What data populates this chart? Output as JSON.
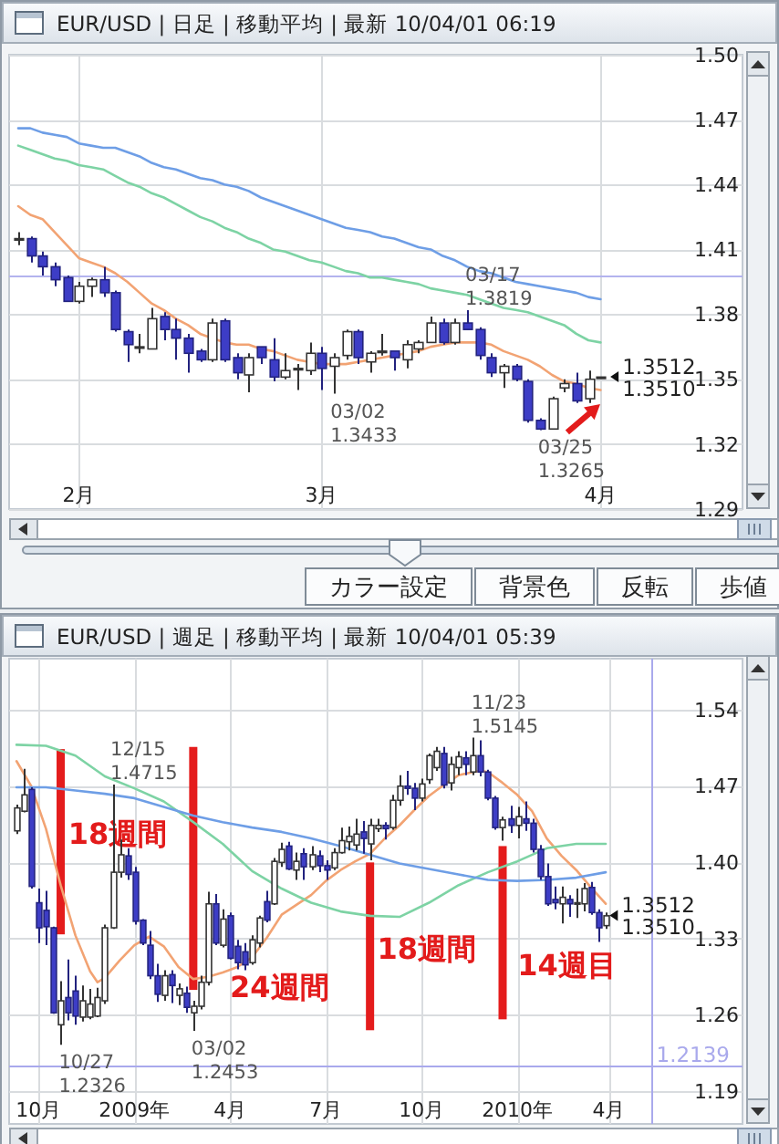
{
  "chart_data": [
    {
      "type": "candlestick",
      "title": "EUR/USD | 日足 | 移動平均 | 最新 10/04/01 06:19",
      "categories": [
        null,
        null,
        null,
        null,
        null,
        "2月",
        null,
        null,
        null,
        null,
        null,
        null,
        null,
        null,
        null,
        null,
        null,
        null,
        null,
        null,
        null,
        null,
        null,
        null,
        null,
        "3月",
        null,
        null,
        null,
        null,
        null,
        null,
        null,
        null,
        null,
        null,
        null,
        null,
        null,
        null,
        null,
        null,
        null,
        null,
        null,
        null,
        null,
        null,
        "4月"
      ],
      "ohlc": [
        [
          1.415,
          1.418,
          1.412,
          1.415
        ],
        [
          1.415,
          1.416,
          1.404,
          1.407
        ],
        [
          1.407,
          1.409,
          1.398,
          1.402
        ],
        [
          1.402,
          1.404,
          1.393,
          1.396
        ],
        [
          1.397,
          1.398,
          1.386,
          1.386
        ],
        [
          1.386,
          1.395,
          1.385,
          1.393
        ],
        [
          1.393,
          1.397,
          1.388,
          1.396
        ],
        [
          1.396,
          1.402,
          1.388,
          1.39
        ],
        [
          1.39,
          1.391,
          1.372,
          1.373
        ],
        [
          1.372,
          1.373,
          1.358,
          1.366
        ],
        [
          1.365,
          1.371,
          1.362,
          1.365
        ],
        [
          1.364,
          1.383,
          1.364,
          1.378
        ],
        [
          1.379,
          1.381,
          1.368,
          1.373
        ],
        [
          1.373,
          1.378,
          1.359,
          1.369
        ],
        [
          1.369,
          1.371,
          1.353,
          1.362
        ],
        [
          1.363,
          1.364,
          1.358,
          1.359
        ],
        [
          1.359,
          1.378,
          1.358,
          1.376
        ],
        [
          1.377,
          1.378,
          1.358,
          1.359
        ],
        [
          1.36,
          1.362,
          1.35,
          1.353
        ],
        [
          1.352,
          1.362,
          1.344,
          1.36
        ],
        [
          1.365,
          1.365,
          1.357,
          1.36
        ],
        [
          1.359,
          1.369,
          1.349,
          1.351
        ],
        [
          1.351,
          1.362,
          1.35,
          1.354
        ],
        [
          1.355,
          1.357,
          1.345,
          1.355
        ],
        [
          1.354,
          1.367,
          1.352,
          1.362
        ],
        [
          1.362,
          1.365,
          1.345,
          1.355
        ],
        [
          1.356,
          1.362,
          1.3433,
          1.36
        ],
        [
          1.361,
          1.373,
          1.359,
          1.372
        ],
        [
          1.372,
          1.373,
          1.357,
          1.36
        ],
        [
          1.358,
          1.363,
          1.353,
          1.362
        ],
        [
          1.363,
          1.371,
          1.361,
          1.363
        ],
        [
          1.363,
          1.363,
          1.354,
          1.36
        ],
        [
          1.359,
          1.368,
          1.355,
          1.366
        ],
        [
          1.364,
          1.368,
          1.362,
          1.367
        ],
        [
          1.367,
          1.379,
          1.367,
          1.376
        ],
        [
          1.376,
          1.378,
          1.366,
          1.367
        ],
        [
          1.367,
          1.378,
          1.366,
          1.376
        ],
        [
          1.376,
          1.3819,
          1.373,
          1.373
        ],
        [
          1.373,
          1.374,
          1.359,
          1.361
        ],
        [
          1.36,
          1.362,
          1.351,
          1.353
        ],
        [
          1.353,
          1.357,
          1.346,
          1.356
        ],
        [
          1.356,
          1.357,
          1.349,
          1.35
        ],
        [
          1.349,
          1.35,
          1.33,
          1.331
        ],
        [
          1.331,
          1.332,
          1.3265,
          1.327
        ],
        [
          1.327,
          1.342,
          1.327,
          1.341
        ],
        [
          1.346,
          1.35,
          1.344,
          1.348
        ],
        [
          1.348,
          1.353,
          1.339,
          1.34
        ],
        [
          1.341,
          1.354,
          1.339,
          1.35
        ],
        [
          1.351,
          1.351,
          1.351,
          1.351
        ]
      ],
      "series": [
        {
          "type": "line",
          "color": "#f2a373",
          "values": [
            1.43,
            1.426,
            1.424,
            1.418,
            1.412,
            1.406,
            1.404,
            1.402,
            1.399,
            1.395,
            1.39,
            1.385,
            1.382,
            1.378,
            1.375,
            1.371,
            1.369,
            1.367,
            1.366,
            1.366,
            1.364,
            1.363,
            1.361,
            1.359,
            1.358,
            1.357,
            1.357,
            1.357,
            1.358,
            1.359,
            1.36,
            1.361,
            1.362,
            1.363,
            1.365,
            1.366,
            1.367,
            1.367,
            1.367,
            1.366,
            1.363,
            1.361,
            1.359,
            1.356,
            1.352,
            1.349,
            1.348,
            1.346,
            1.345
          ]
        },
        {
          "type": "line",
          "color": "#7dd3a4",
          "values": [
            1.458,
            1.456,
            1.454,
            1.452,
            1.451,
            1.449,
            1.448,
            1.447,
            1.444,
            1.441,
            1.439,
            1.436,
            1.434,
            1.431,
            1.428,
            1.425,
            1.423,
            1.42,
            1.418,
            1.415,
            1.413,
            1.41,
            1.409,
            1.407,
            1.405,
            1.404,
            1.402,
            1.4,
            1.399,
            1.397,
            1.397,
            1.396,
            1.395,
            1.394,
            1.392,
            1.391,
            1.39,
            1.389,
            1.387,
            1.385,
            1.383,
            1.382,
            1.381,
            1.379,
            1.377,
            1.375,
            1.371,
            1.368,
            1.367
          ]
        },
        {
          "type": "line",
          "color": "#6e9ee6",
          "values": [
            1.466,
            1.466,
            1.464,
            1.463,
            1.462,
            1.459,
            1.458,
            1.457,
            1.457,
            1.455,
            1.453,
            1.45,
            1.448,
            1.447,
            1.445,
            1.443,
            1.442,
            1.44,
            1.439,
            1.437,
            1.434,
            1.432,
            1.43,
            1.428,
            1.426,
            1.424,
            1.422,
            1.42,
            1.419,
            1.418,
            1.416,
            1.415,
            1.413,
            1.411,
            1.41,
            1.407,
            1.405,
            1.402,
            1.4,
            1.399,
            1.397,
            1.395,
            1.394,
            1.393,
            1.392,
            1.391,
            1.39,
            1.388,
            1.387
          ]
        }
      ],
      "ylim": [
        1.29,
        1.5
      ],
      "yticks": [
        1.29,
        1.32,
        1.35,
        1.38,
        1.41,
        1.44,
        1.47,
        {
          "value": 1.5,
          "label": "1.50"
        }
      ],
      "grid": true,
      "ref_lines": [
        {
          "axis": "y",
          "value": 1.398,
          "color": "#b3b3ee"
        }
      ],
      "annotations": [
        "03/02\n1.3433",
        "03/17\n1.3819",
        "03/25\n1.3265",
        "1.3512",
        "1.3510",
        "カラー設定",
        "背景色",
        "反転",
        "歩値"
      ]
    },
    {
      "type": "candlestick",
      "title": "EUR/USD | 週足 | 移動平均 | 最新 10/04/01 05:39",
      "x": [
        "2008-09-15",
        "2008-09-22",
        "2008-09-29",
        "2008-10-06",
        "2008-10-13",
        "2008-10-20",
        "2008-10-27",
        "2008-11-03",
        "2008-11-10",
        "2008-11-17",
        "2008-11-24",
        "2008-12-01",
        "2008-12-08",
        "2008-12-15",
        "2008-12-22",
        "2008-12-29",
        "2009-01-05",
        "2009-01-12",
        "2009-01-19",
        "2009-01-26",
        "2009-02-02",
        "2009-02-09",
        "2009-02-16",
        "2009-02-23",
        "2009-03-02",
        "2009-03-09",
        "2009-03-16",
        "2009-03-23",
        "2009-03-30",
        "2009-04-06",
        "2009-04-13",
        "2009-04-20",
        "2009-04-27",
        "2009-05-04",
        "2009-05-11",
        "2009-05-18",
        "2009-05-25",
        "2009-06-01",
        "2009-06-08",
        "2009-06-15",
        "2009-06-22",
        "2009-06-29",
        "2009-07-06",
        "2009-07-13",
        "2009-07-20",
        "2009-07-27",
        "2009-08-03",
        "2009-08-10",
        "2009-08-17",
        "2009-08-24",
        "2009-08-31",
        "2009-09-07",
        "2009-09-14",
        "2009-09-21",
        "2009-09-28",
        "2009-10-05",
        "2009-10-12",
        "2009-10-19",
        "2009-10-26",
        "2009-11-02",
        "2009-11-09",
        "2009-11-16",
        "2009-11-23",
        "2009-11-30",
        "2009-12-07",
        "2009-12-14",
        "2009-12-21",
        "2009-12-28",
        "2010-01-04",
        "2010-01-11",
        "2010-01-18",
        "2010-01-25",
        "2010-02-01",
        "2010-02-08",
        "2010-02-15",
        "2010-02-22",
        "2010-03-01",
        "2010-03-08",
        "2010-03-15",
        "2010-03-22",
        "2010-03-29"
      ],
      "ohlc": [
        [
          1.429,
          1.453,
          1.426,
          1.45
        ],
        [
          1.447,
          1.486,
          1.446,
          1.462
        ],
        [
          1.467,
          1.469,
          1.376,
          1.378
        ],
        [
          1.363,
          1.376,
          1.326,
          1.34
        ],
        [
          1.356,
          1.374,
          1.324,
          1.341
        ],
        [
          1.34,
          1.341,
          1.261,
          1.262
        ],
        [
          1.251,
          1.291,
          1.2326,
          1.273
        ],
        [
          1.276,
          1.311,
          1.255,
          1.262
        ],
        [
          1.282,
          1.296,
          1.251,
          1.259
        ],
        [
          1.258,
          1.287,
          1.254,
          1.273
        ],
        [
          1.258,
          1.284,
          1.256,
          1.27
        ],
        [
          1.259,
          1.285,
          1.258,
          1.276
        ],
        [
          1.273,
          1.343,
          1.27,
          1.34
        ],
        [
          1.34,
          1.4715,
          1.339,
          1.391
        ],
        [
          1.391,
          1.421,
          1.386,
          1.407
        ],
        [
          1.406,
          1.413,
          1.384,
          1.389
        ],
        [
          1.391,
          1.396,
          1.343,
          1.346
        ],
        [
          1.347,
          1.348,
          1.324,
          1.326
        ],
        [
          1.324,
          1.337,
          1.293,
          1.296
        ],
        [
          1.296,
          1.307,
          1.272,
          1.279
        ],
        [
          1.278,
          1.301,
          1.273,
          1.296
        ],
        [
          1.297,
          1.301,
          1.271,
          1.287
        ],
        [
          1.278,
          1.289,
          1.269,
          1.284
        ],
        [
          1.28,
          1.286,
          1.262,
          1.267
        ],
        [
          1.262,
          1.273,
          1.2453,
          1.268
        ],
        [
          1.268,
          1.296,
          1.265,
          1.29
        ],
        [
          1.29,
          1.373,
          1.287,
          1.362
        ],
        [
          1.362,
          1.371,
          1.324,
          1.326
        ],
        [
          1.324,
          1.357,
          1.322,
          1.348
        ],
        [
          1.351,
          1.354,
          1.311,
          1.312
        ],
        [
          1.323,
          1.329,
          1.302,
          1.308
        ],
        [
          1.318,
          1.326,
          1.301,
          1.306
        ],
        [
          1.308,
          1.333,
          1.306,
          1.329
        ],
        [
          1.326,
          1.351,
          1.322,
          1.349
        ],
        [
          1.364,
          1.374,
          1.345,
          1.347
        ],
        [
          1.362,
          1.404,
          1.361,
          1.401
        ],
        [
          1.4,
          1.418,
          1.396,
          1.412
        ],
        [
          1.415,
          1.419,
          1.393,
          1.394
        ],
        [
          1.393,
          1.409,
          1.384,
          1.401
        ],
        [
          1.408,
          1.413,
          1.384,
          1.396
        ],
        [
          1.396,
          1.415,
          1.393,
          1.407
        ],
        [
          1.406,
          1.411,
          1.391,
          1.397
        ],
        [
          1.397,
          1.402,
          1.384,
          1.393
        ],
        [
          1.395,
          1.413,
          1.393,
          1.409
        ],
        [
          1.409,
          1.432,
          1.408,
          1.42
        ],
        [
          1.419,
          1.433,
          1.411,
          1.424
        ],
        [
          1.416,
          1.44,
          1.411,
          1.426
        ],
        [
          1.428,
          1.438,
          1.408,
          1.422
        ],
        [
          1.417,
          1.44,
          1.402,
          1.434
        ],
        [
          1.431,
          1.44,
          1.428,
          1.434
        ],
        [
          1.434,
          1.437,
          1.421,
          1.431
        ],
        [
          1.432,
          1.462,
          1.43,
          1.457
        ],
        [
          1.457,
          1.48,
          1.452,
          1.47
        ],
        [
          1.47,
          1.484,
          1.462,
          1.468
        ],
        [
          1.468,
          1.473,
          1.448,
          1.459
        ],
        [
          1.459,
          1.477,
          1.456,
          1.472
        ],
        [
          1.476,
          1.5,
          1.472,
          1.498
        ],
        [
          1.487,
          1.506,
          1.484,
          1.502
        ],
        [
          1.5,
          1.506,
          1.468,
          1.471
        ],
        [
          1.473,
          1.497,
          1.466,
          1.49
        ],
        [
          1.487,
          1.502,
          1.48,
          1.497
        ],
        [
          1.496,
          1.502,
          1.48,
          1.49
        ],
        [
          1.483,
          1.5145,
          1.48,
          1.498
        ],
        [
          1.498,
          1.512,
          1.479,
          1.483
        ],
        [
          1.483,
          1.485,
          1.457,
          1.459
        ],
        [
          1.459,
          1.461,
          1.43,
          1.432
        ],
        [
          1.432,
          1.442,
          1.42,
          1.439
        ],
        [
          1.44,
          1.452,
          1.427,
          1.434
        ],
        [
          1.434,
          1.451,
          1.422,
          1.442
        ],
        [
          1.44,
          1.456,
          1.429,
          1.436
        ],
        [
          1.436,
          1.44,
          1.409,
          1.412
        ],
        [
          1.412,
          1.416,
          1.384,
          1.387
        ],
        [
          1.387,
          1.399,
          1.36,
          1.362
        ],
        [
          1.366,
          1.378,
          1.357,
          1.363
        ],
        [
          1.362,
          1.378,
          1.344,
          1.368
        ],
        [
          1.366,
          1.37,
          1.35,
          1.362
        ],
        [
          1.362,
          1.376,
          1.349,
          1.363
        ],
        [
          1.362,
          1.381,
          1.355,
          1.376
        ],
        [
          1.377,
          1.382,
          1.352,
          1.354
        ],
        [
          1.354,
          1.357,
          1.327,
          1.34
        ],
        [
          1.342,
          1.354,
          1.339,
          1.351
        ]
      ],
      "series": [
        {
          "type": "line",
          "color": "#f2a373",
          "x": [
            "2008-09-15",
            "2008-09-29",
            "2008-10-13",
            "2008-10-27",
            "2008-11-10",
            "2008-11-24",
            "2008-12-01",
            "2008-12-08",
            "2008-12-22",
            "2009-01-05",
            "2009-01-19",
            "2009-02-02",
            "2009-02-16",
            "2009-03-02",
            "2009-03-16",
            "2009-03-30",
            "2009-04-13",
            "2009-04-27",
            "2009-05-11",
            "2009-05-25",
            "2009-06-08",
            "2009-06-22",
            "2009-07-06",
            "2009-07-20",
            "2009-08-03",
            "2009-08-17",
            "2009-08-31",
            "2009-09-14",
            "2009-09-28",
            "2009-10-12",
            "2009-10-26",
            "2009-11-09",
            "2009-11-23",
            "2009-11-30",
            "2009-12-07",
            "2009-12-21",
            "2010-01-04",
            "2010-01-18",
            "2010-02-01",
            "2010-02-15",
            "2010-03-01",
            "2010-03-15",
            "2010-03-29"
          ],
          "values": [
            1.493,
            1.47,
            1.431,
            1.379,
            1.333,
            1.3,
            1.29,
            1.294,
            1.31,
            1.324,
            1.332,
            1.323,
            1.304,
            1.293,
            1.295,
            1.299,
            1.304,
            1.313,
            1.331,
            1.352,
            1.361,
            1.37,
            1.383,
            1.393,
            1.401,
            1.408,
            1.422,
            1.434,
            1.448,
            1.461,
            1.471,
            1.48,
            1.483,
            1.484,
            1.483,
            1.473,
            1.462,
            1.447,
            1.422,
            1.406,
            1.393,
            1.377,
            1.362
          ]
        },
        {
          "type": "line",
          "color": "#7dd3a4",
          "x": [
            "2008-09-15",
            "2008-10-13",
            "2008-11-10",
            "2008-12-08",
            "2009-01-05",
            "2009-02-02",
            "2009-03-02",
            "2009-03-30",
            "2009-04-27",
            "2009-05-25",
            "2009-06-22",
            "2009-07-20",
            "2009-08-17",
            "2009-09-14",
            "2009-10-12",
            "2009-11-09",
            "2009-12-07",
            "2010-01-04",
            "2010-02-01",
            "2010-03-01",
            "2010-03-29"
          ],
          "values": [
            1.508,
            1.507,
            1.498,
            1.479,
            1.468,
            1.456,
            1.437,
            1.417,
            1.392,
            1.376,
            1.363,
            1.355,
            1.351,
            1.35,
            1.363,
            1.379,
            1.391,
            1.401,
            1.413,
            1.417,
            1.417
          ]
        },
        {
          "type": "line",
          "color": "#6e9ee6",
          "x": [
            "2008-09-15",
            "2008-10-13",
            "2008-11-10",
            "2008-12-08",
            "2009-01-05",
            "2009-02-02",
            "2009-03-02",
            "2009-03-30",
            "2009-04-27",
            "2009-05-25",
            "2009-06-22",
            "2009-07-20",
            "2009-08-17",
            "2009-09-14",
            "2009-10-12",
            "2009-11-09",
            "2009-12-07",
            "2010-01-04",
            "2010-02-01",
            "2010-03-01",
            "2010-03-29"
          ],
          "values": [
            1.469,
            1.469,
            1.466,
            1.463,
            1.459,
            1.451,
            1.443,
            1.437,
            1.432,
            1.428,
            1.422,
            1.415,
            1.407,
            1.399,
            1.394,
            1.389,
            1.384,
            1.383,
            1.384,
            1.386,
            1.391
          ]
        },
        {
          "type": "bar",
          "color": "#e41c1c",
          "x": [
            "2008-10-27",
            "2009-03-02",
            "2009-08-17",
            "2009-12-21"
          ],
          "base": [
            1.334,
            1.283,
            1.246,
            1.256
          ],
          "values": [
            0.17,
            0.223,
            0.154,
            0.159
          ]
        }
      ],
      "xlim": [
        "2008-09-08",
        "2010-08-06"
      ],
      "xticks": [
        {
          "value": "2008-10-06",
          "label": "10月"
        },
        {
          "value": "2009-01-05",
          "label": "2009年"
        },
        {
          "value": "2009-04-06",
          "label": "4月"
        },
        {
          "value": "2009-07-06",
          "label": "7月"
        },
        {
          "value": "2009-10-05",
          "label": "10月"
        },
        {
          "value": "2010-01-04",
          "label": "2010年"
        },
        {
          "value": "2010-04-01",
          "label": "4月"
        }
      ],
      "ylim": [
        1.16,
        1.587
      ],
      "yticks": [
        1.19,
        1.26,
        1.33,
        {
          "value": 1.4,
          "label": "1.40"
        },
        1.47,
        1.54
      ],
      "grid": true,
      "ref_lines": [
        {
          "axis": "y",
          "value": 1.2139,
          "label": "1.2139",
          "color": "#a9a9ec"
        },
        {
          "axis": "x",
          "value": "2010-05-11",
          "color": "#a9a9ec"
        }
      ],
      "annotations": [
        {
          "text": "10/27\n1.2326",
          "x": "2008-10-27",
          "y": 1.2326
        },
        {
          "text": "12/15\n1.4715",
          "x": "2008-12-15",
          "y": 1.4715
        },
        {
          "text": "03/02\n1.2453",
          "x": "2009-03-02",
          "y": 1.2453
        },
        {
          "text": "11/23\n1.5145",
          "x": "2009-11-23",
          "y": 1.5145
        },
        "18週間",
        "24週間",
        "18週間",
        "14週目",
        "1.3512",
        "1.3510"
      ]
    }
  ]
}
